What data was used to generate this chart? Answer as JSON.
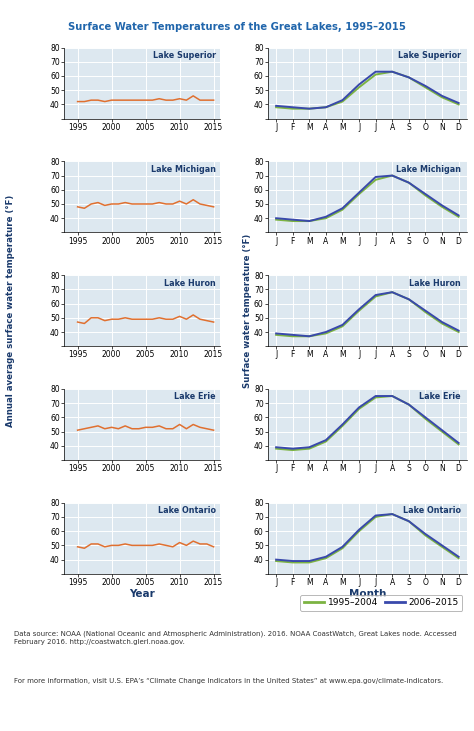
{
  "title": "Surface Water Temperatures of the Great Lakes, 1995–2015",
  "title_color": "#2166ac",
  "lakes": [
    "Lake Superior",
    "Lake Michigan",
    "Lake Huron",
    "Lake Erie",
    "Lake Ontario"
  ],
  "left_ylabel": "Annual average surface water temperature (°F)",
  "right_ylabel": "Surface water temperature (°F)",
  "left_xlabel": "Year",
  "right_xlabel": "Month",
  "years": [
    1995,
    1996,
    1997,
    1998,
    1999,
    2000,
    2001,
    2002,
    2003,
    2004,
    2005,
    2006,
    2007,
    2008,
    2009,
    2010,
    2011,
    2012,
    2013,
    2014,
    2015
  ],
  "annual_data": {
    "Lake Superior": [
      42,
      42,
      43,
      43,
      42,
      43,
      43,
      43,
      43,
      43,
      43,
      43,
      44,
      43,
      43,
      44,
      43,
      46,
      43,
      43,
      43
    ],
    "Lake Michigan": [
      48,
      47,
      50,
      51,
      49,
      50,
      50,
      51,
      50,
      50,
      50,
      50,
      51,
      50,
      50,
      52,
      50,
      53,
      50,
      49,
      48
    ],
    "Lake Huron": [
      47,
      46,
      50,
      50,
      48,
      49,
      49,
      50,
      49,
      49,
      49,
      49,
      50,
      49,
      49,
      51,
      49,
      52,
      49,
      48,
      47
    ],
    "Lake Erie": [
      51,
      52,
      53,
      54,
      52,
      53,
      52,
      54,
      52,
      52,
      53,
      53,
      54,
      52,
      52,
      55,
      52,
      55,
      53,
      52,
      51
    ],
    "Lake Ontario": [
      49,
      48,
      51,
      51,
      49,
      50,
      50,
      51,
      50,
      50,
      50,
      50,
      51,
      50,
      49,
      52,
      50,
      53,
      51,
      51,
      49
    ]
  },
  "months": [
    "J",
    "F",
    "M",
    "A",
    "M",
    "J",
    "J",
    "A",
    "S",
    "O",
    "N",
    "D"
  ],
  "seasonal_early": {
    "Lake Superior": [
      38,
      37,
      37,
      38,
      42,
      52,
      61,
      63,
      59,
      52,
      45,
      40
    ],
    "Lake Michigan": [
      39,
      38,
      38,
      40,
      46,
      57,
      67,
      70,
      65,
      56,
      48,
      41
    ],
    "Lake Huron": [
      38,
      37,
      37,
      39,
      44,
      55,
      65,
      68,
      63,
      54,
      46,
      40
    ],
    "Lake Erie": [
      38,
      37,
      38,
      43,
      54,
      66,
      74,
      75,
      69,
      59,
      50,
      41
    ],
    "Lake Ontario": [
      39,
      38,
      38,
      41,
      48,
      60,
      70,
      72,
      67,
      57,
      49,
      41
    ]
  },
  "seasonal_late": {
    "Lake Superior": [
      39,
      38,
      37,
      38,
      43,
      54,
      63,
      63,
      59,
      53,
      46,
      41
    ],
    "Lake Michigan": [
      40,
      39,
      38,
      41,
      47,
      58,
      69,
      70,
      65,
      57,
      49,
      42
    ],
    "Lake Huron": [
      39,
      38,
      37,
      40,
      45,
      56,
      66,
      68,
      63,
      55,
      47,
      41
    ],
    "Lake Erie": [
      39,
      38,
      39,
      44,
      55,
      67,
      75,
      75,
      69,
      60,
      51,
      42
    ],
    "Lake Ontario": [
      40,
      39,
      39,
      42,
      49,
      61,
      71,
      72,
      67,
      58,
      50,
      42
    ]
  },
  "annual_color": "#e07030",
  "early_color": "#7cb342",
  "late_color": "#3949ab",
  "bg_color": "#dde8f0",
  "grid_color": "#ffffff",
  "ylim": [
    30,
    80
  ],
  "yticks": [
    30,
    40,
    50,
    60,
    70,
    80
  ],
  "footnote1": "Data source: NOAA (National Oceanic and Atmospheric Administration). 2016. NOAA CoastWatch, Great Lakes node. Accessed\nFebruary 2016. http://coastwatch.glerl.noaa.gov.",
  "footnote2": "For more information, visit U.S. EPA’s “Climate Change Indicators in the United States” at www.epa.gov/climate-indicators.",
  "legend_label_early": "1995–2004",
  "legend_label_late": "2006–2015"
}
